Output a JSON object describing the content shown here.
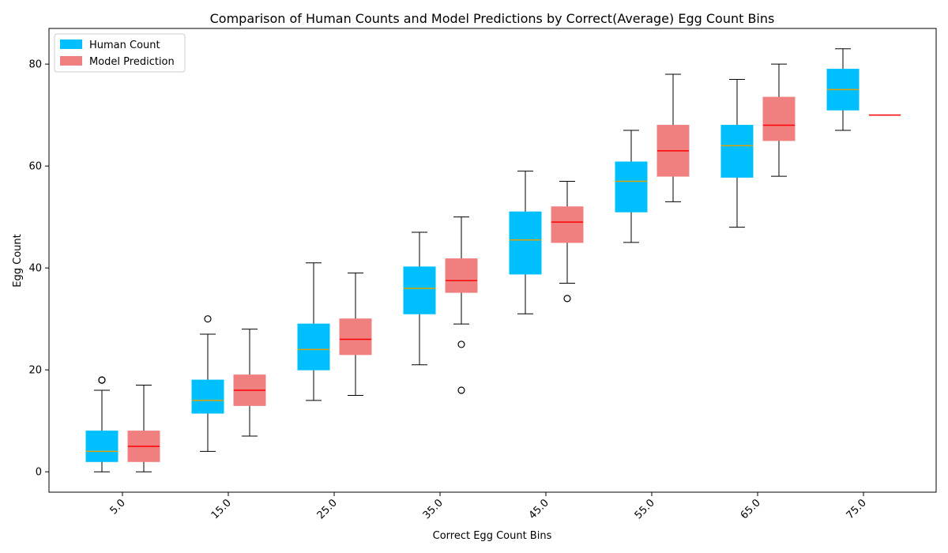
{
  "chart_data": {
    "type": "box",
    "title": "Comparison of Human Counts and Model Predictions by Correct(Average) Egg Count Bins",
    "xlabel": "Correct Egg Count Bins",
    "ylabel": "Egg Count",
    "ylim": [
      -4,
      87
    ],
    "y_ticks": [
      0,
      20,
      40,
      60,
      80
    ],
    "categories": [
      "5.0",
      "15.0",
      "25.0",
      "35.0",
      "45.0",
      "55.0",
      "65.0",
      "75.0"
    ],
    "legend_position": "top-left",
    "grid": false,
    "series": [
      {
        "name": "Human Count",
        "color": "#00bfff",
        "median_color": "#e0a000",
        "boxes": [
          {
            "whisker_low": 0,
            "q1": 2,
            "median": 4,
            "q3": 8,
            "whisker_high": 16,
            "outliers": [
              18,
              18
            ]
          },
          {
            "whisker_low": 4,
            "q1": 11.5,
            "median": 14,
            "q3": 18,
            "whisker_high": 27,
            "outliers": [
              30
            ]
          },
          {
            "whisker_low": 14,
            "q1": 20,
            "median": 24,
            "q3": 29,
            "whisker_high": 41,
            "outliers": []
          },
          {
            "whisker_low": 21,
            "q1": 31,
            "median": 36,
            "q3": 40.2,
            "whisker_high": 47,
            "outliers": []
          },
          {
            "whisker_low": 31,
            "q1": 38.8,
            "median": 45.5,
            "q3": 51,
            "whisker_high": 59,
            "outliers": []
          },
          {
            "whisker_low": 45,
            "q1": 51,
            "median": 57,
            "q3": 60.8,
            "whisker_high": 67,
            "outliers": []
          },
          {
            "whisker_low": 48,
            "q1": 57.8,
            "median": 64,
            "q3": 68,
            "whisker_high": 77,
            "outliers": []
          },
          {
            "whisker_low": 67,
            "q1": 71,
            "median": 75,
            "q3": 79,
            "whisker_high": 83,
            "outliers": []
          }
        ]
      },
      {
        "name": "Model Prediction",
        "color": "#f08080",
        "median_color": "#ff0000",
        "boxes": [
          {
            "whisker_low": 0,
            "q1": 2,
            "median": 5,
            "q3": 8,
            "whisker_high": 17,
            "outliers": []
          },
          {
            "whisker_low": 7,
            "q1": 13,
            "median": 16,
            "q3": 19,
            "whisker_high": 28,
            "outliers": []
          },
          {
            "whisker_low": 15,
            "q1": 23,
            "median": 26,
            "q3": 30,
            "whisker_high": 39,
            "outliers": []
          },
          {
            "whisker_low": 29,
            "q1": 35.2,
            "median": 37.5,
            "q3": 41.8,
            "whisker_high": 50,
            "outliers": [
              25,
              16
            ]
          },
          {
            "whisker_low": 37,
            "q1": 45,
            "median": 49,
            "q3": 52,
            "whisker_high": 57,
            "outliers": [
              34
            ]
          },
          {
            "whisker_low": 53,
            "q1": 58,
            "median": 63,
            "q3": 68,
            "whisker_high": 78,
            "outliers": []
          },
          {
            "whisker_low": 58,
            "q1": 65,
            "median": 68,
            "q3": 73.5,
            "whisker_high": 80,
            "outliers": []
          },
          {
            "whisker_low": 70,
            "q1": 70,
            "median": 70,
            "q3": 70,
            "whisker_high": 70,
            "outliers": []
          }
        ]
      }
    ]
  }
}
